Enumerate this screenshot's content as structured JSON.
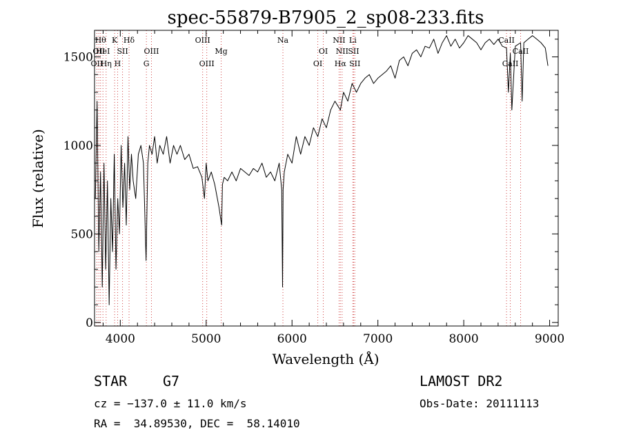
{
  "chart_data": {
    "type": "line",
    "title": "spec-55879-B7905_2_sp08-233.fits",
    "xlabel": "Wavelength (Å)",
    "ylabel": "Flux (relative)",
    "xlim": [
      3700,
      9100
    ],
    "ylim": [
      -20,
      1650
    ],
    "xticks": [
      {
        "value": 4000,
        "label": "4000"
      },
      {
        "value": 5000,
        "label": "5000"
      },
      {
        "value": 6000,
        "label": "6000"
      },
      {
        "value": 7000,
        "label": "7000"
      },
      {
        "value": 8000,
        "label": "8000"
      },
      {
        "value": 9000,
        "label": "9000"
      }
    ],
    "yticks": [
      {
        "value": 0,
        "label": "0"
      },
      {
        "value": 500,
        "label": "500"
      },
      {
        "value": 1000,
        "label": "1000"
      },
      {
        "value": 1500,
        "label": "1500"
      }
    ],
    "grid": false,
    "line_color": "#000000",
    "marker_color": "#d04040",
    "series": [
      {
        "x": [
          3710,
          3730,
          3750,
          3770,
          3790,
          3810,
          3830,
          3850,
          3870,
          3890,
          3910,
          3930,
          3950,
          3970,
          3990,
          4010,
          4030,
          4050,
          4070,
          4090,
          4110,
          4130,
          4150,
          4180,
          4210,
          4240,
          4270,
          4300,
          4320,
          4340,
          4370,
          4400,
          4430,
          4460,
          4500,
          4540,
          4580,
          4620,
          4660,
          4700,
          4750,
          4800,
          4850,
          4900,
          4950,
          4980,
          5000,
          5020,
          5060,
          5100,
          5150,
          5180,
          5190,
          5210,
          5250,
          5300,
          5350,
          5400,
          5450,
          5500,
          5550,
          5600,
          5650,
          5700,
          5750,
          5800,
          5850,
          5880,
          5890,
          5896,
          5910,
          5950,
          6000,
          6050,
          6100,
          6150,
          6200,
          6250,
          6300,
          6350,
          6400,
          6450,
          6500,
          6563,
          6600,
          6650,
          6700,
          6750,
          6800,
          6850,
          6900,
          6950,
          7000,
          7050,
          7100,
          7150,
          7200,
          7250,
          7300,
          7350,
          7400,
          7450,
          7500,
          7550,
          7600,
          7650,
          7700,
          7750,
          7800,
          7850,
          7900,
          7950,
          8000,
          8050,
          8100,
          8150,
          8200,
          8250,
          8300,
          8350,
          8400,
          8450,
          8498,
          8520,
          8542,
          8560,
          8600,
          8662,
          8680,
          8700,
          8750,
          8800,
          8850,
          8900,
          8950,
          8980
        ],
        "y": [
          700,
          1250,
          400,
          850,
          200,
          900,
          300,
          800,
          100,
          700,
          400,
          950,
          300,
          700,
          500,
          1000,
          650,
          900,
          550,
          1050,
          750,
          950,
          800,
          700,
          950,
          1000,
          900,
          350,
          900,
          1000,
          950,
          1050,
          900,
          1000,
          950,
          1050,
          900,
          1000,
          950,
          1000,
          920,
          950,
          870,
          880,
          820,
          700,
          900,
          800,
          850,
          780,
          650,
          550,
          780,
          820,
          800,
          850,
          800,
          870,
          850,
          830,
          870,
          850,
          900,
          820,
          850,
          800,
          900,
          750,
          200,
          750,
          850,
          950,
          900,
          1050,
          950,
          1050,
          1000,
          1100,
          1050,
          1150,
          1100,
          1200,
          1250,
          1200,
          1300,
          1250,
          1350,
          1300,
          1350,
          1380,
          1400,
          1350,
          1380,
          1400,
          1420,
          1450,
          1380,
          1480,
          1500,
          1450,
          1520,
          1540,
          1500,
          1560,
          1550,
          1600,
          1520,
          1580,
          1620,
          1560,
          1600,
          1550,
          1580,
          1620,
          1600,
          1580,
          1540,
          1580,
          1600,
          1570,
          1600,
          1560,
          1550,
          1300,
          1520,
          1200,
          1560,
          1580,
          1250,
          1580,
          1600,
          1620,
          1600,
          1580,
          1550,
          1450
        ]
      }
    ],
    "line_markers": [
      {
        "x": 3727,
        "label": "OII",
        "row": 2
      },
      {
        "x": 3750,
        "label": "OII",
        "row": 1
      },
      {
        "x": 3770,
        "label": "Hθ",
        "row": 0
      },
      {
        "x": 3798,
        "label": "HeI",
        "row": 1
      },
      {
        "x": 3835,
        "label": "Hη",
        "row": 2
      },
      {
        "x": 3934,
        "label": "K",
        "row": 0
      },
      {
        "x": 3969,
        "label": "H",
        "row": 2
      },
      {
        "x": 4026,
        "label": "SII",
        "row": 1
      },
      {
        "x": 4102,
        "label": "Hδ",
        "row": 0
      },
      {
        "x": 4304,
        "label": "G",
        "row": 2
      },
      {
        "x": 4363,
        "label": "OIII",
        "row": 1
      },
      {
        "x": 4959,
        "label": "OIII",
        "row": 0
      },
      {
        "x": 5007,
        "label": "OIII",
        "row": 2
      },
      {
        "x": 5175,
        "label": "Mg",
        "row": 1
      },
      {
        "x": 5894,
        "label": "Na",
        "row": 0
      },
      {
        "x": 6300,
        "label": "OI",
        "row": 2
      },
      {
        "x": 6364,
        "label": "OI",
        "row": 1
      },
      {
        "x": 6548,
        "label": "NII",
        "row": 0
      },
      {
        "x": 6563,
        "label": "Hα",
        "row": 2
      },
      {
        "x": 6583,
        "label": "NII",
        "row": 1
      },
      {
        "x": 6708,
        "label": "Li",
        "row": 0
      },
      {
        "x": 6717,
        "label": "SII",
        "row": 1
      },
      {
        "x": 6731,
        "label": "SII",
        "row": 2
      },
      {
        "x": 8498,
        "label": "CaII",
        "row": 0
      },
      {
        "x": 8542,
        "label": "CaII",
        "row": 2
      },
      {
        "x": 8662,
        "label": "CaII",
        "row": 1
      }
    ]
  },
  "info": {
    "class_label": "STAR",
    "subclass_label": "G7",
    "survey_label": "LAMOST DR2",
    "cz_text": "cz = −137.0 ± 11.0 km/s",
    "obs_date_text": "Obs-Date: 20111113",
    "coords_text": "RA =  34.89530, DEC =  58.14010"
  }
}
